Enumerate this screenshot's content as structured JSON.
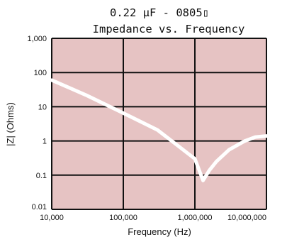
{
  "chart_data": {
    "type": "line",
    "title": "0.22 µF - 0805▯",
    "subtitle": "Impedance vs. Frequency",
    "xlabel": "Frequency (Hz)",
    "ylabel": "|Z| (Ohms)",
    "x_scale": "log",
    "y_scale": "log",
    "xlim": [
      10000,
      10000000
    ],
    "ylim": [
      0.01,
      1000
    ],
    "x_ticks": [
      10000,
      100000,
      1000000,
      10000000
    ],
    "x_tick_labels": [
      "10,000",
      "100,000",
      "1,000,000",
      "10,000,000"
    ],
    "y_ticks": [
      0.01,
      0.1,
      1,
      10,
      100,
      1000
    ],
    "y_tick_labels": [
      "0.01",
      "0.1",
      "1",
      "10",
      "100",
      "1,000"
    ],
    "grid": true,
    "colors": {
      "plot_background": "#e6c3c3",
      "grid": "#111111",
      "line": "#ffffff"
    },
    "series": [
      {
        "x": [
          10000,
          30000,
          100000,
          300000,
          1000000,
          1300000,
          1400000,
          1600000,
          2000000,
          3000000,
          5000000,
          7000000,
          10000000
        ],
        "y": [
          60,
          22,
          6.5,
          2.1,
          0.3,
          0.07,
          0.09,
          0.14,
          0.25,
          0.55,
          1.0,
          1.3,
          1.4
        ]
      }
    ]
  }
}
